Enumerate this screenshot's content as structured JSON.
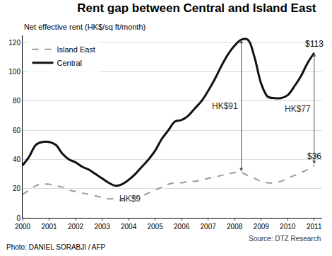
{
  "chart_data": {
    "type": "line",
    "title": "Rent gap between Central and Island East",
    "y_label": "Net effective rent (HK$/sq ft/month)",
    "source": "Source: DTZ Research",
    "credit": "Photo: DANIEL SORABJI / AFP",
    "x": [
      2000,
      2000.25,
      2000.5,
      2000.75,
      2001,
      2001.25,
      2001.5,
      2001.75,
      2002,
      2002.25,
      2002.5,
      2002.75,
      2003,
      2003.25,
      2003.5,
      2003.75,
      2004,
      2004.25,
      2004.5,
      2004.75,
      2005,
      2005.25,
      2005.5,
      2005.75,
      2006,
      2006.25,
      2006.5,
      2006.75,
      2007,
      2007.25,
      2007.5,
      2007.75,
      2008,
      2008.25,
      2008.5,
      2008.75,
      2009,
      2009.25,
      2009.5,
      2009.75,
      2010,
      2010.25,
      2010.5,
      2010.75,
      2011
    ],
    "series": [
      {
        "name": "Island East",
        "color": "#999999",
        "line_style": "dash",
        "values": [
          16,
          19,
          22,
          23,
          23,
          22,
          21,
          19,
          18,
          17,
          16,
          15,
          14,
          13,
          13,
          12,
          13,
          14,
          15,
          17,
          19,
          21,
          23,
          24,
          24,
          25,
          25,
          26,
          27,
          28,
          29,
          30,
          31,
          31,
          29,
          27,
          25,
          24,
          24,
          25,
          27,
          29,
          31,
          33,
          36
        ]
      },
      {
        "name": "Central",
        "color": "#111111",
        "line_style": "solid",
        "values": [
          36,
          42,
          50,
          52,
          52,
          50,
          44,
          40,
          38,
          35,
          33,
          30,
          27,
          24,
          22,
          23,
          26,
          30,
          35,
          40,
          46,
          54,
          60,
          66,
          67,
          70,
          75,
          80,
          87,
          95,
          104,
          112,
          118,
          122,
          122,
          110,
          92,
          83,
          82,
          82,
          84,
          90,
          97,
          106,
          113
        ]
      }
    ],
    "xlim": [
      2000,
      2011.3
    ],
    "xticks": [
      2000,
      2001,
      2002,
      2003,
      2004,
      2005,
      2006,
      2007,
      2008,
      2009,
      2010,
      2011
    ],
    "ylim": [
      0,
      125
    ],
    "yticks": [
      0,
      20,
      40,
      60,
      80,
      100,
      120
    ],
    "grid": true,
    "legend": "top left",
    "annotations": [
      {
        "text": "HK$9",
        "x": 2003.5
      },
      {
        "text": "HK$91",
        "x": 2008.25
      },
      {
        "text": "HK$77",
        "x": 2011
      },
      {
        "text": "$113",
        "x": 2011,
        "series": "Central"
      },
      {
        "text": "$36",
        "x": 2011,
        "series": "Island East"
      }
    ]
  }
}
